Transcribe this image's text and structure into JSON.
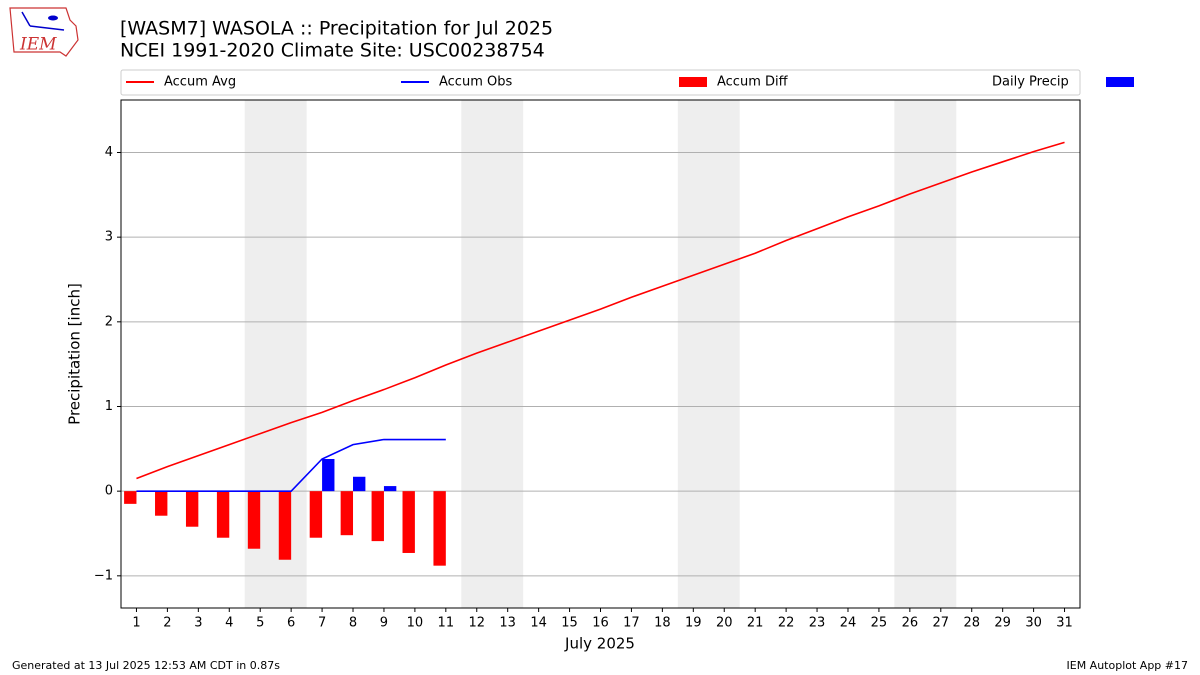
{
  "chart_data": {
    "type": "line",
    "title": "[WASM7] WASOLA :: Precipitation for Jul 2025",
    "subtitle": "NCEI 1991-2020 Climate Site: USC00238754",
    "logo_text": "IEM",
    "xlabel": "July 2025",
    "ylabel": "Precipitation [inch]",
    "footer_left": "Generated at 13 Jul 2025 12:53 AM CDT in 0.87s",
    "footer_right": "IEM Autoplot App #17",
    "x": [
      1,
      2,
      3,
      4,
      5,
      6,
      7,
      8,
      9,
      10,
      11,
      12,
      13,
      14,
      15,
      16,
      17,
      18,
      19,
      20,
      21,
      22,
      23,
      24,
      25,
      26,
      27,
      28,
      29,
      30,
      31
    ],
    "xlim": [
      0.5,
      31.5
    ],
    "xticks": [
      1,
      2,
      3,
      4,
      5,
      6,
      7,
      8,
      9,
      10,
      11,
      12,
      13,
      14,
      15,
      16,
      17,
      18,
      19,
      20,
      21,
      22,
      23,
      24,
      25,
      26,
      27,
      28,
      29,
      30,
      31
    ],
    "ylim": [
      -1.38,
      4.62
    ],
    "yticks": [
      {
        "value": -1,
        "label": "−1"
      },
      0,
      1,
      2,
      3,
      4
    ],
    "grid": true,
    "shaded_ranges": [
      [
        4.5,
        6.5
      ],
      [
        11.5,
        13.5
      ],
      [
        18.5,
        20.5
      ],
      [
        25.5,
        27.5
      ]
    ],
    "shade_color": "#eeeeee",
    "series": [
      {
        "name": "Accum Avg",
        "color": "#ff0000",
        "kind": "line",
        "values": [
          0.15,
          0.29,
          0.42,
          0.55,
          0.68,
          0.81,
          0.93,
          1.07,
          1.2,
          1.34,
          1.49,
          1.63,
          1.76,
          1.89,
          2.02,
          2.15,
          2.29,
          2.42,
          2.55,
          2.68,
          2.81,
          2.96,
          3.1,
          3.24,
          3.37,
          3.51,
          3.64,
          3.77,
          3.89,
          4.01,
          4.12
        ]
      },
      {
        "name": "Accum Obs",
        "color": "#0000ff",
        "kind": "line",
        "values": [
          0,
          0,
          0,
          0,
          0,
          0,
          0.38,
          0.55,
          0.61,
          0.61,
          0.61,
          null,
          null,
          null,
          null,
          null,
          null,
          null,
          null,
          null,
          null,
          null,
          null,
          null,
          null,
          null,
          null,
          null,
          null,
          null,
          null
        ]
      },
      {
        "name": "Accum Diff",
        "color": "#ff0000",
        "kind": "bar",
        "offset": -0.4,
        "width": 0.4,
        "values": [
          -0.15,
          -0.29,
          -0.42,
          -0.55,
          -0.68,
          -0.81,
          -0.55,
          -0.52,
          -0.59,
          -0.73,
          -0.88,
          null,
          null,
          null,
          null,
          null,
          null,
          null,
          null,
          null,
          null,
          null,
          null,
          null,
          null,
          null,
          null,
          null,
          null,
          null,
          null
        ]
      },
      {
        "name": "Daily Precip",
        "color": "#0000ff",
        "kind": "bar",
        "offset": 0,
        "width": 0.4,
        "values": [
          0,
          0,
          0,
          0,
          0,
          0,
          0.38,
          0.17,
          0.06,
          0,
          0,
          null,
          null,
          null,
          null,
          null,
          null,
          null,
          null,
          null,
          null,
          null,
          null,
          null,
          null,
          null,
          null,
          null,
          null,
          null,
          null
        ]
      }
    ]
  }
}
